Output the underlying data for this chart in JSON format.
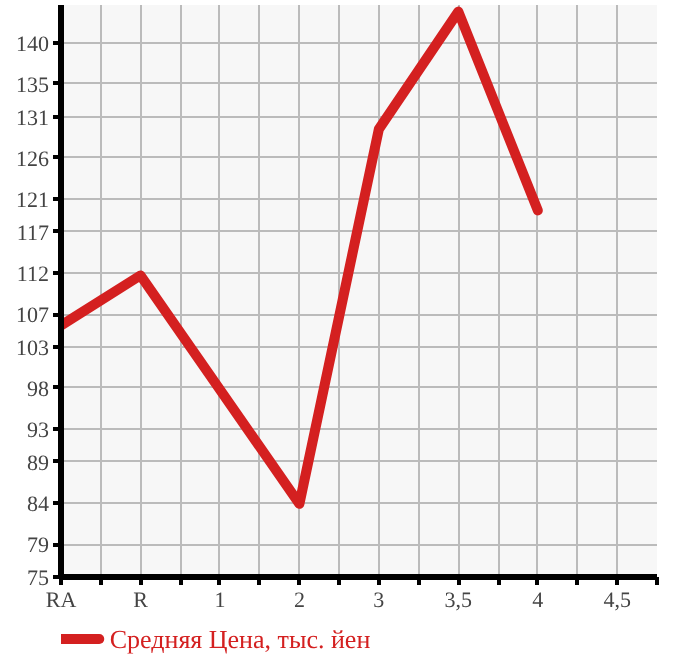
{
  "chart_data": {
    "type": "line",
    "categories": [
      "RA",
      "R",
      "1",
      "2",
      "3",
      "3,5",
      "4",
      "4,5"
    ],
    "series": [
      {
        "name": "Средняя Цена, тыс. йен",
        "color": "#d42020",
        "values": [
          105.6,
          111.7,
          null,
          83.9,
          129.5,
          143.8,
          119.6,
          null
        ]
      }
    ],
    "ylim": [
      75,
      144.6
    ],
    "yticks": [
      75,
      79,
      84,
      89,
      93,
      98,
      103,
      107,
      112,
      117,
      121,
      126,
      131,
      135,
      140
    ],
    "grid": true,
    "legend": "bottom",
    "marker": "none",
    "line_style": "solid"
  }
}
